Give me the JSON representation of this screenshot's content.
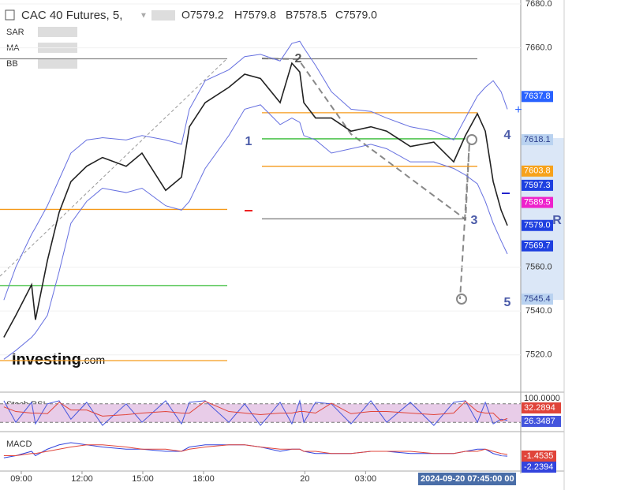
{
  "chart_data": {
    "type": "line",
    "title": "CAC 40 Futures, 5,",
    "ohlc": [
      "O7579.2",
      "H7579.8",
      "B7578.5",
      "C7579.0"
    ],
    "indicators": [
      "SAR",
      "MA",
      "BB"
    ],
    "logo": "Investing",
    "logo_suffix": ".com",
    "x": [
      8.14,
      8.73,
      9.51,
      9.7,
      10.29,
      10.87,
      11.45,
      12.23,
      13.01,
      14.18,
      14.96,
      16.13,
      16.91,
      17.3,
      18.08,
      19.25,
      20.03,
      20.81,
      21.78,
      22.36,
      22.75,
      22.95,
      23.53,
      24.31,
      25.28,
      26.26,
      27.04,
      28.21,
      29.37,
      30.35,
      30.93,
      31.52,
      31.91,
      32.3,
      32.69,
      33.0
    ],
    "series": [
      {
        "color": "#222222",
        "values": [
          7528,
          7538,
          7552,
          7536,
          7563,
          7585,
          7599,
          7606,
          7610,
          7606,
          7612,
          7595,
          7601,
          7624,
          7635,
          7642,
          7648,
          7646,
          7635,
          7653,
          7649,
          7635,
          7628,
          7628,
          7622,
          7624,
          7622,
          7615,
          7617,
          7608,
          7620,
          7630,
          7622,
          7599,
          7586,
          7579
        ]
      },
      {
        "color": "#6670e0",
        "values": [
          7545,
          7560,
          7575,
          7578,
          7588,
          7600,
          7612,
          7618,
          7619,
          7618,
          7620,
          7618,
          7616,
          7632,
          7645,
          7650,
          7656,
          7657,
          7654,
          7662,
          7663,
          7660,
          7652,
          7640,
          7632,
          7631,
          7628,
          7624,
          7622,
          7618,
          7628,
          7638,
          7642,
          7645,
          7640,
          7632
        ]
      },
      {
        "color": "#6670e0",
        "values": [
          7518,
          7522,
          7528,
          7530,
          7538,
          7558,
          7580,
          7590,
          7596,
          7594,
          7596,
          7588,
          7586,
          7590,
          7605,
          7620,
          7632,
          7634,
          7625,
          7628,
          7626,
          7620,
          7618,
          7612,
          7614,
          7616,
          7614,
          7608,
          7608,
          7605,
          7602,
          7598,
          7590,
          7580,
          7572,
          7566
        ]
      }
    ],
    "xlim": [
      7.95,
      33.66
    ],
    "xticks": [
      {
        "value": 9,
        "label": "09:00"
      },
      {
        "value": 12,
        "label": "12:00"
      },
      {
        "value": 15,
        "label": "15:00"
      },
      {
        "value": 18,
        "label": "18:00"
      },
      {
        "value": 23,
        "label": "20"
      },
      {
        "value": 26,
        "label": "03:00"
      }
    ],
    "ylim": [
      7503,
      7681.8
    ],
    "yticks": [
      {
        "value": 7520,
        "label": "7520.0"
      },
      {
        "value": 7540,
        "label": "7540.0"
      },
      {
        "value": 7560,
        "label": "7560.0"
      },
      {
        "value": 7660,
        "label": "7660.0"
      },
      {
        "value": 7680,
        "label": "7680.0"
      }
    ],
    "price_labels": [
      {
        "value": 7637.8,
        "label": "7637.8",
        "color": "#2962ff",
        "text": "#ffffff"
      },
      {
        "value": 7618.1,
        "label": "7618.1",
        "color": "#b9d2f0",
        "text": "#2c3e8c"
      },
      {
        "value": 7603.8,
        "label": "7603.8",
        "color": "#f7a21b",
        "text": "#ffffff"
      },
      {
        "value": 7597.3,
        "label": "7597.3",
        "color": "#1e40e0",
        "text": "#ffffff"
      },
      {
        "value": 7589.5,
        "label": "7589.5",
        "color": "#ee22cc",
        "text": "#ffffff"
      },
      {
        "value": 7579.0,
        "label": "7579.0",
        "color": "#1e40e0",
        "text": "#ffffff"
      },
      {
        "value": 7569.7,
        "label": "7569.7",
        "color": "#1e40e0",
        "text": "#ffffff"
      },
      {
        "value": 7545.4,
        "label": "7545.4",
        "color": "#b9d2f0",
        "text": "#2c3e8c"
      }
    ],
    "levels": [
      {
        "value": 7655,
        "color": "#888888"
      },
      {
        "value": 7655,
        "color": "#777777"
      },
      {
        "value": 7630.4,
        "color": "#f59a1b"
      },
      {
        "value": 7618.5,
        "color": "#33bb33"
      },
      {
        "value": 7606,
        "color": "#f59a1b"
      },
      {
        "value": 7582,
        "color": "#777777"
      },
      {
        "value": 7586.3,
        "color": "#f59a1b"
      },
      {
        "value": 7551.6,
        "color": "#33bb33"
      },
      {
        "value": 7517.4,
        "color": "#f59a1b"
      }
    ],
    "wave_labels": [
      "1",
      "2",
      "3",
      "4",
      "5",
      "R"
    ],
    "crosshair_label": "2024-09-20 07:45:00 00",
    "stoch_rsi": {
      "title": "Stoch RSI",
      "ylim": [
        0,
        100
      ],
      "yticks": [
        {
          "value": 100,
          "label": "100.0000"
        }
      ],
      "bands": [
        20,
        80
      ],
      "series": [
        {
          "color": "#4455dd",
          "values": [
            90,
            20,
            85,
            15,
            80,
            90,
            30,
            85,
            10,
            80,
            20,
            90,
            15,
            85,
            90,
            20,
            80,
            10,
            85,
            15,
            90,
            20,
            85,
            80,
            15,
            90,
            20,
            85,
            10,
            85,
            90,
            20,
            85,
            15,
            30,
            26.3487
          ]
        },
        {
          "color": "#e0443a",
          "values": [
            70,
            55,
            50,
            50,
            48,
            85,
            60,
            60,
            40,
            45,
            50,
            55,
            50,
            50,
            88,
            55,
            50,
            45,
            50,
            50,
            55,
            55,
            50,
            82,
            48,
            55,
            55,
            50,
            45,
            50,
            88,
            55,
            50,
            50,
            25,
            32.2894
          ]
        }
      ]
    },
    "macd": {
      "title": "MACD",
      "ylim": [
        -8,
        8
      ],
      "series": [
        {
          "color": "#3344dd",
          "values": [
            -3,
            -2,
            0,
            -2,
            1,
            3,
            4,
            3,
            2,
            1,
            1,
            0,
            0,
            2,
            3,
            3,
            3,
            2,
            0,
            1,
            1,
            0,
            -1,
            -1,
            -1,
            0,
            0,
            -1,
            -1,
            -1,
            0,
            1,
            1,
            -1,
            -2,
            -2.2394
          ]
        },
        {
          "color": "#e0443a",
          "values": [
            -2,
            -2,
            -1,
            -1,
            0,
            1,
            2,
            3,
            3,
            2,
            1,
            1,
            0,
            1,
            2,
            3,
            3,
            2,
            1,
            1,
            1,
            0,
            0,
            -1,
            -1,
            0,
            0,
            0,
            -1,
            -1,
            0,
            0,
            1,
            0,
            -1,
            -1.4535
          ]
        }
      ]
    }
  }
}
